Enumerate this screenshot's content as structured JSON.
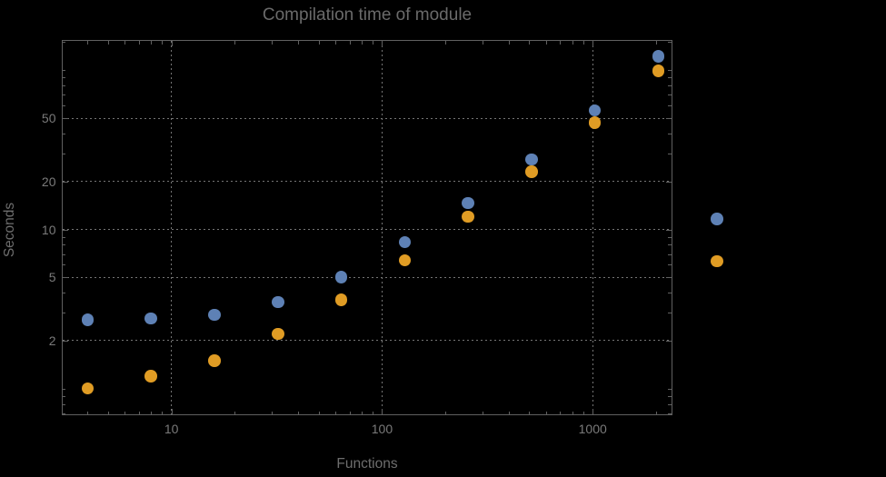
{
  "chart_data": {
    "type": "scatter",
    "title": "Compilation time of module",
    "xlabel": "Functions",
    "ylabel": "Seconds",
    "xscale": "log",
    "yscale": "log",
    "xlim": [
      3.0,
      2380
    ],
    "ylim": [
      0.68,
      155
    ],
    "grid": true,
    "grid_style": "dotted",
    "x_ticks": {
      "major": [
        10,
        100,
        1000
      ],
      "major_labels": [
        "10",
        "100",
        "1000"
      ],
      "minor": [
        4,
        5,
        6,
        7,
        8,
        9,
        20,
        30,
        40,
        50,
        60,
        70,
        80,
        90,
        200,
        300,
        400,
        500,
        600,
        700,
        800,
        900,
        2000
      ]
    },
    "y_ticks": {
      "major": [
        2,
        5,
        10,
        20,
        50
      ],
      "major_labels": [
        "2",
        "5",
        "10",
        "20",
        "50"
      ],
      "minor": [
        0.7,
        0.8,
        0.9,
        1,
        3,
        4,
        6,
        7,
        8,
        9,
        30,
        40,
        60,
        70,
        80,
        90,
        100,
        150
      ]
    },
    "series": [
      {
        "name": "blue",
        "label": "",
        "color": "#5E81B5",
        "x": [
          4,
          8,
          16,
          32,
          64,
          128,
          256,
          512,
          1024,
          2048
        ],
        "y": [
          2.7,
          2.75,
          2.9,
          3.5,
          5.0,
          8.3,
          14.6,
          27.5,
          56,
          122
        ]
      },
      {
        "name": "orange",
        "label": "",
        "color": "#E09C24",
        "x": [
          4,
          8,
          16,
          32,
          64,
          128,
          256,
          512,
          1024,
          2048
        ],
        "y": [
          1.0,
          1.2,
          1.5,
          2.2,
          3.6,
          6.4,
          12,
          23,
          47,
          99
        ]
      }
    ],
    "legend": {
      "position": "outside-right",
      "labels_visible": false,
      "markers": [
        {
          "series": "blue",
          "color": "#5E81B5",
          "y_value": 11.6
        },
        {
          "series": "orange",
          "color": "#E09C24",
          "y_value": 6.3
        }
      ]
    }
  },
  "colors": {
    "background": "#000000",
    "frame": "#606060",
    "gridline": "#757575",
    "tick": "#606060",
    "tick_label": "#7A7A7A",
    "title": "#6A6A6A",
    "axis_label": "#6E6E6E"
  }
}
